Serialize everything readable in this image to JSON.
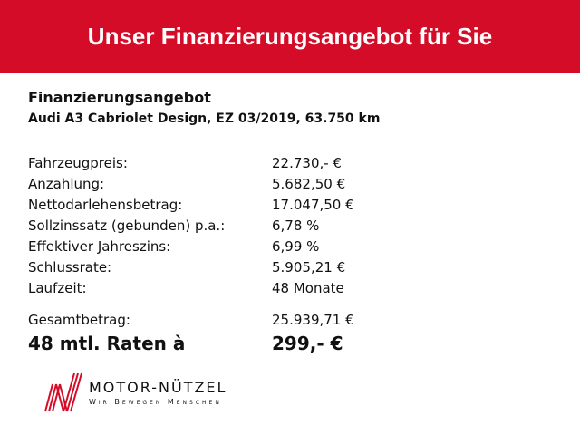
{
  "header": {
    "title": "Unser Finanzierungsangebot für Sie",
    "color": "#d40c28"
  },
  "offer": {
    "title": "Finanzierungsangebot",
    "vehicle": "Audi A3 Cabriolet Design, EZ 03/2019, 63.750 km"
  },
  "rows": [
    {
      "label": "Fahrzeugpreis:",
      "value": "22.730,- €"
    },
    {
      "label": "Anzahlung:",
      "value": "5.682,50 €"
    },
    {
      "label": "Nettodarlehensbetrag:",
      "value": "17.047,50 €"
    },
    {
      "label": "Sollzinssatz (gebunden) p.a.:",
      "value": "6,78 %"
    },
    {
      "label": "Effektiver Jahreszins:",
      "value": "6,99 %"
    },
    {
      "label": "Schlussrate:",
      "value": "5.905,21 €"
    },
    {
      "label": "Laufzeit:",
      "value": "48 Monate"
    }
  ],
  "total": {
    "label": "Gesamtbetrag:",
    "value": "25.939,71 €"
  },
  "rate": {
    "label": "48 mtl. Raten à",
    "value": "299,- €"
  },
  "logo": {
    "name": "MOTOR-NÜTZEL",
    "slogan": "Wir Bewegen Menschen"
  }
}
